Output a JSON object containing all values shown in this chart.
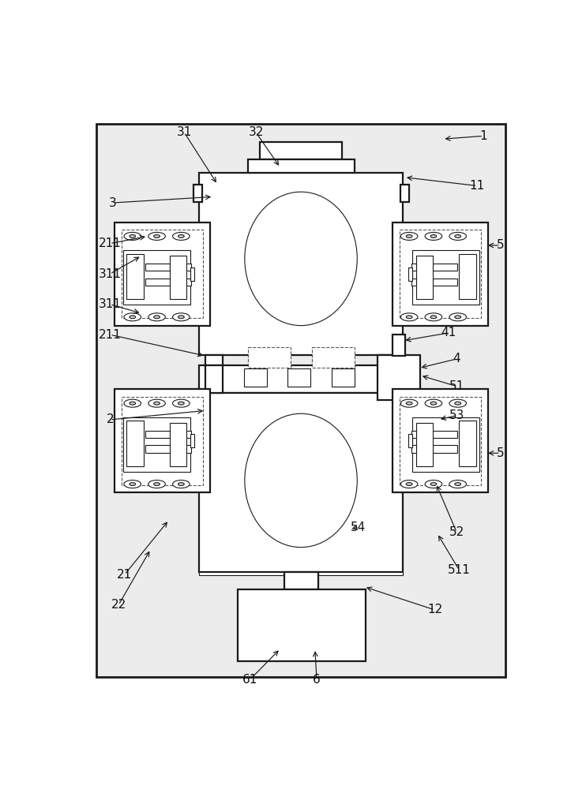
{
  "lc": "#1a1a1a",
  "white": "#ffffff",
  "bg": "#f0f0f0",
  "figsize": [
    7.42,
    10.0
  ],
  "dpi": 100
}
